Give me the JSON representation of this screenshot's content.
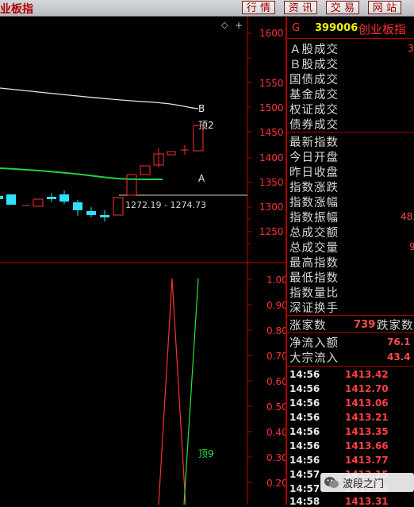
{
  "header": {
    "title": "业板指",
    "tabs": [
      "行 情",
      "资 讯",
      "交 易",
      "网 站"
    ]
  },
  "price_axis": {
    "labels": [
      "1600",
      "1550",
      "1500",
      "1450",
      "1400",
      "1350",
      "1300",
      "1250",
      "1200"
    ],
    "range_label": "1272.19 - 1274.73",
    "annotations": {
      "b": "B",
      "top2": "顶2",
      "a": "A"
    },
    "diamond": "◇",
    "plus": "+"
  },
  "indicator_axis": {
    "labels": [
      "1.00",
      "0.90",
      "0.80",
      "0.70",
      "0.60",
      "0.50",
      "0.40",
      "0.30",
      "0.20",
      "0.10"
    ],
    "annotation": "顶9"
  },
  "quote": {
    "flag": "G",
    "code": "399006",
    "name": "创业板指",
    "fields": [
      "Ａ股成交",
      "Ｂ股成交",
      "国债成交",
      "基金成交",
      "权证成交",
      "债券成交",
      "最新指数",
      "今日开盘",
      "昨日收盘",
      "指数涨跌",
      "指数涨幅",
      "指数振幅",
      "总成交额",
      "总成交量",
      "最高指数",
      "最低指数",
      "指数量比",
      "深证换手"
    ],
    "values": {
      "a_share": "3",
      "amplitude": "48.",
      "volume": "9"
    },
    "rise_label": "涨家数",
    "rise_count": "739",
    "fall_label": "跌家数",
    "net_inflow_label": "净流入额",
    "net_inflow": "76.1",
    "block_inflow_label": "大宗流入",
    "block_inflow": "43.4"
  },
  "ticks": [
    {
      "time": "14:56",
      "price": "1413.42"
    },
    {
      "time": "14:56",
      "price": "1412.70"
    },
    {
      "time": "14:56",
      "price": "1413.06"
    },
    {
      "time": "14:56",
      "price": "1413.21"
    },
    {
      "time": "14:56",
      "price": "1413.35"
    },
    {
      "time": "14:56",
      "price": "1413.66"
    },
    {
      "time": "14:56",
      "price": "1413.77"
    },
    {
      "time": "14:57",
      "price": "1413.15"
    },
    {
      "time": "14:57",
      "price": "1413.03"
    },
    {
      "time": "14:58",
      "price": "1413.31"
    }
  ],
  "watermark": "波段之门",
  "colors": {
    "up": "#ff3030",
    "down": "#30e0ff",
    "grid": "#b00000"
  }
}
